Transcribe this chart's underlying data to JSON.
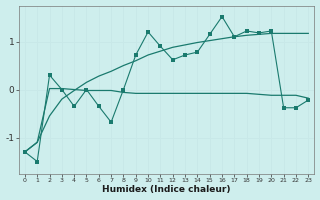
{
  "x": [
    0,
    1,
    2,
    3,
    4,
    5,
    6,
    7,
    8,
    9,
    10,
    11,
    12,
    13,
    14,
    15,
    16,
    17,
    18,
    19,
    20,
    21,
    22,
    23
  ],
  "y_zigzag": [
    -1.3,
    -1.5,
    0.3,
    0.0,
    -0.35,
    0.0,
    -0.35,
    -0.68,
    0.0,
    0.72,
    1.2,
    0.9,
    0.62,
    0.72,
    0.78,
    1.15,
    1.52,
    1.1,
    1.22,
    1.18,
    1.22,
    -0.38,
    -0.38,
    -0.22
  ],
  "y_diagonal": [
    -1.3,
    -1.1,
    -0.55,
    -0.2,
    -0.02,
    0.15,
    0.28,
    0.38,
    0.5,
    0.6,
    0.72,
    0.8,
    0.88,
    0.93,
    0.98,
    1.02,
    1.06,
    1.1,
    1.13,
    1.15,
    1.17,
    1.17,
    1.17,
    1.17
  ],
  "y_flat": [
    -1.3,
    -1.1,
    0.02,
    0.02,
    0.0,
    -0.02,
    -0.02,
    -0.02,
    -0.06,
    -0.08,
    -0.08,
    -0.08,
    -0.08,
    -0.08,
    -0.08,
    -0.08,
    -0.08,
    -0.08,
    -0.08,
    -0.1,
    -0.12,
    -0.12,
    -0.12,
    -0.18
  ],
  "color": "#1a7a6e",
  "bg_color": "#ceeeed",
  "grid_color": "#e8f8f8",
  "xlabel": "Humidex (Indice chaleur)",
  "xlim": [
    -0.5,
    23.5
  ],
  "ylim": [
    -1.75,
    1.75
  ],
  "yticks": [
    -1,
    0,
    1
  ],
  "xticks": [
    0,
    1,
    2,
    3,
    4,
    5,
    6,
    7,
    8,
    9,
    10,
    11,
    12,
    13,
    14,
    15,
    16,
    17,
    18,
    19,
    20,
    21,
    22,
    23
  ]
}
